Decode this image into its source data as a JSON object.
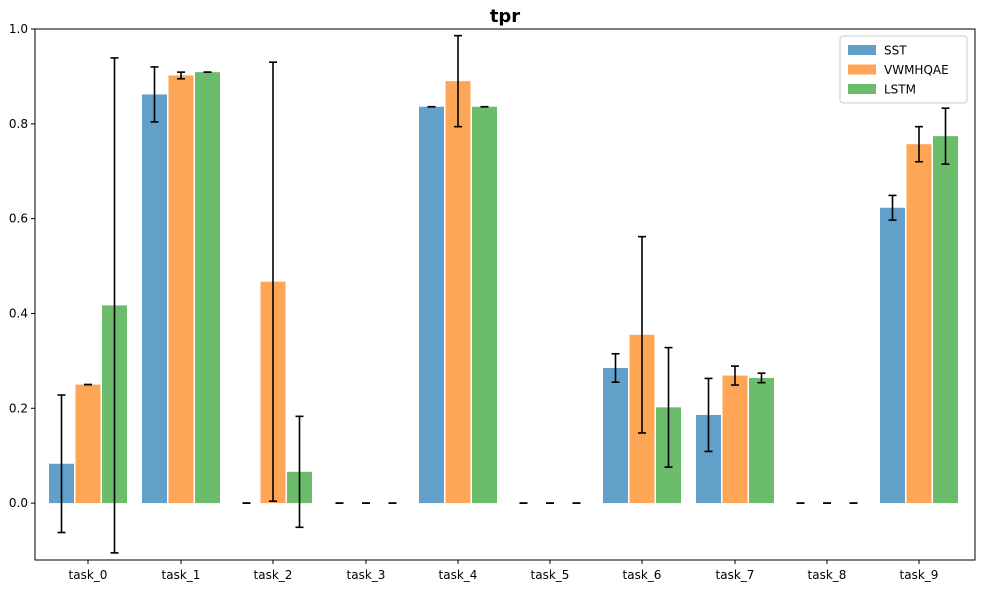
{
  "chart_data": {
    "type": "bar",
    "title": "tpr",
    "xlabel": "",
    "ylabel": "",
    "categories": [
      "task_0",
      "task_1",
      "task_2",
      "task_3",
      "task_4",
      "task_5",
      "task_6",
      "task_7",
      "task_8",
      "task_9"
    ],
    "ylim": [
      -0.12,
      1.0
    ],
    "yticks": [
      "0.0",
      "0.2",
      "0.4",
      "0.6",
      "0.8",
      "1.0"
    ],
    "legend_position": "top-right",
    "grid": false,
    "series": [
      {
        "name": "SST",
        "color": "#1f77b4",
        "values": [
          0.083,
          0.862,
          0.0,
          0.0,
          0.836,
          0.0,
          0.285,
          0.186,
          0.0,
          0.623
        ],
        "errors": [
          0.145,
          0.058,
          0.0,
          0.0,
          0.0,
          0.0,
          0.03,
          0.077,
          0.0,
          0.026
        ]
      },
      {
        "name": "VWMHQAE",
        "color": "#ff7f0e",
        "values": [
          0.25,
          0.902,
          0.467,
          0.0,
          0.89,
          0.0,
          0.355,
          0.269,
          0.0,
          0.757
        ],
        "errors": [
          0.0,
          0.007,
          0.463,
          0.0,
          0.096,
          0.0,
          0.207,
          0.02,
          0.0,
          0.037
        ]
      },
      {
        "name": "LSTM",
        "color": "#2ca02c",
        "values": [
          0.417,
          0.909,
          0.066,
          0.0,
          0.836,
          0.0,
          0.202,
          0.264,
          0.0,
          0.774
        ],
        "errors": [
          0.522,
          0.0,
          0.117,
          0.0,
          0.0,
          0.0,
          0.126,
          0.01,
          0.0,
          0.059
        ]
      }
    ]
  }
}
